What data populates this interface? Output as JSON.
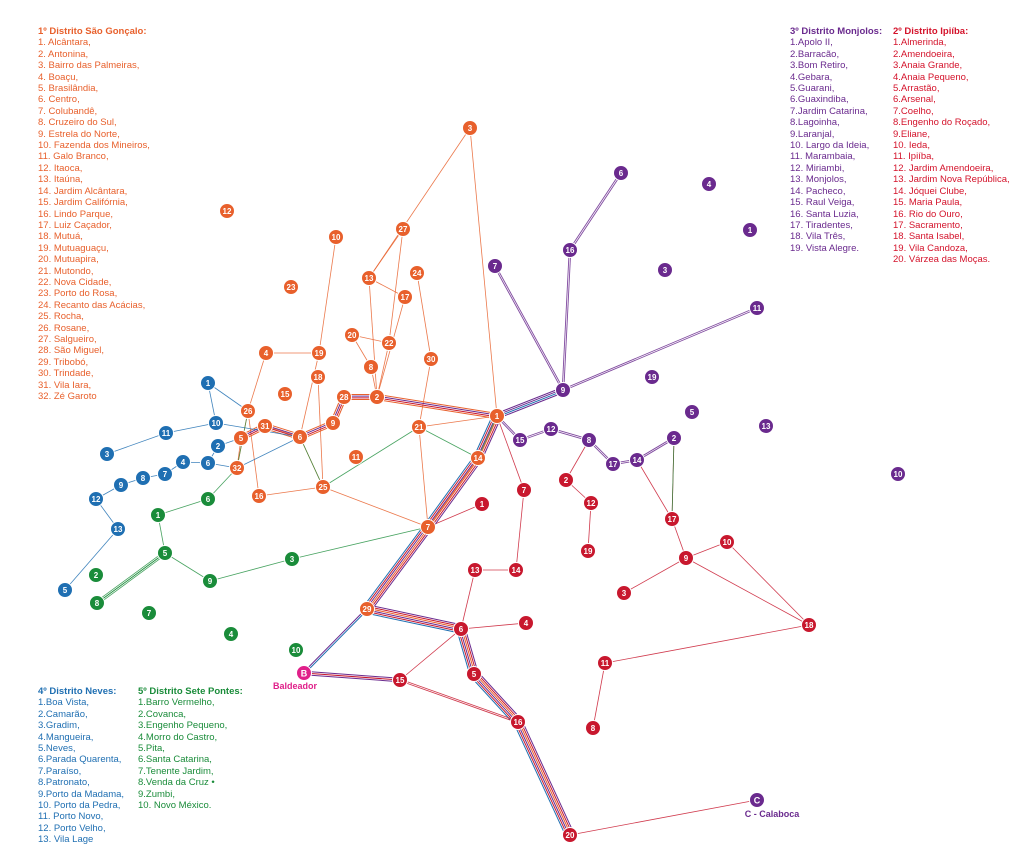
{
  "colors": {
    "sao_goncalo": "#e8602c",
    "monjolos": "#6a2a8e",
    "ipiiba": "#c8182e",
    "neves": "#1f6fb2",
    "sete_pontes": "#1a8c3a",
    "special": "#e0208a"
  },
  "legends": {
    "sao_goncalo": {
      "title": "1º Distrito São Gonçalo:",
      "items": [
        "1. Alcântara,",
        "2. Antonina,",
        "3. Bairro das Palmeiras,",
        "4. Boaçu,",
        "5. Brasilândia,",
        "6. Centro,",
        "7. Colubandê,",
        "8. Cruzeiro do Sul,",
        "9. Estrela do Norte,",
        "10. Fazenda dos Mineiros,",
        "11. Galo Branco,",
        "12. Itaoca,",
        "13. Itaúna,",
        "14. Jardim Alcântara,",
        "15. Jardim Califórnia,",
        "16. Lindo Parque,",
        "17. Luiz Caçador,",
        "18. Mutuá,",
        "19. Mutuaguaçu,",
        "20. Mutuapira,",
        "21. Mutondo,",
        "22. Nova Cidade,",
        "23. Porto do Rosa,",
        "24. Recanto das Acácias,",
        "25. Rocha,",
        "26. Rosane,",
        "27. Salgueiro,",
        "28. São Miguel,",
        "29. Tribobó,",
        "30. Trindade,",
        "31. Vila Iara,",
        "32. Zé Garoto"
      ]
    },
    "monjolos": {
      "title": "3º Distrito Monjolos:",
      "items": [
        "1.Apolo II,",
        "2.Barracão,",
        "3.Bom Retiro,",
        "4.Gebara,",
        "5.Guarani,",
        "6.Guaxindiba,",
        "7.Jardim Catarina,",
        "8.Lagoinha,",
        "9.Laranjal,",
        "10. Largo da Ideia,",
        "11. Marambaia,",
        "12. Miriambi,",
        "13. Monjolos,",
        "14. Pacheco,",
        "15. Raul Veiga,",
        "16. Santa Luzia,",
        "17. Tiradentes,",
        "18.  Vila Três,",
        "19. Vista Alegre."
      ]
    },
    "ipiiba": {
      "title": "2º Distrito Ipiíba:",
      "items": [
        "1.Almerinda,",
        "2.Amendoeira,",
        "3.Anaia Grande,",
        "4.Anaia Pequeno,",
        "5.Arrastão,",
        "6.Arsenal,",
        "7.Coelho,",
        "8.Engenho do Roçado,",
        "9.Eliane,",
        "10. Ieda,",
        "11. Ipiíba,",
        "12. Jardim Amendoeira,",
        "13. Jardim Nova República,",
        "14. Jóquei Clube,",
        "15. Maria Paula,",
        "16. Rio do Ouro,",
        "17. Sacramento,",
        "18. Santa Isabel,",
        "19. Vila Candoza,",
        "20. Várzea das Moças."
      ]
    },
    "neves": {
      "title": "4º Distrito Neves:",
      "items": [
        "1.Boa Vista,",
        "2.Camarão,",
        "3.Gradim,",
        "4.Mangueira,",
        "5.Neves,",
        "6.Parada Quarenta,",
        "7.Paraíso,",
        "8.Patronato,",
        "9.Porto da Madama,",
        "10. Porto da Pedra,",
        "11. Porto Novo,",
        "12. Porto Velho,",
        "13. Vila Lage"
      ]
    },
    "sete_pontes": {
      "title": "5º Distrito Sete Pontes:",
      "items": [
        "1.Barro Vermelho,",
        "2.Covanca,",
        "3.Engenho Pequeno,",
        "4.Morro do Castro,",
        "5.Pita,",
        "6.Santa Catarina,",
        "7.Tenente Jardim,",
        "8.Venda da Cruz •",
        "9.Zumbi,",
        "10. Novo México."
      ]
    }
  },
  "special_nodes": {
    "B": {
      "letter": "B",
      "label": "Baldeador"
    },
    "C": {
      "letter": "C",
      "label": "C - Calaboca"
    }
  }
}
